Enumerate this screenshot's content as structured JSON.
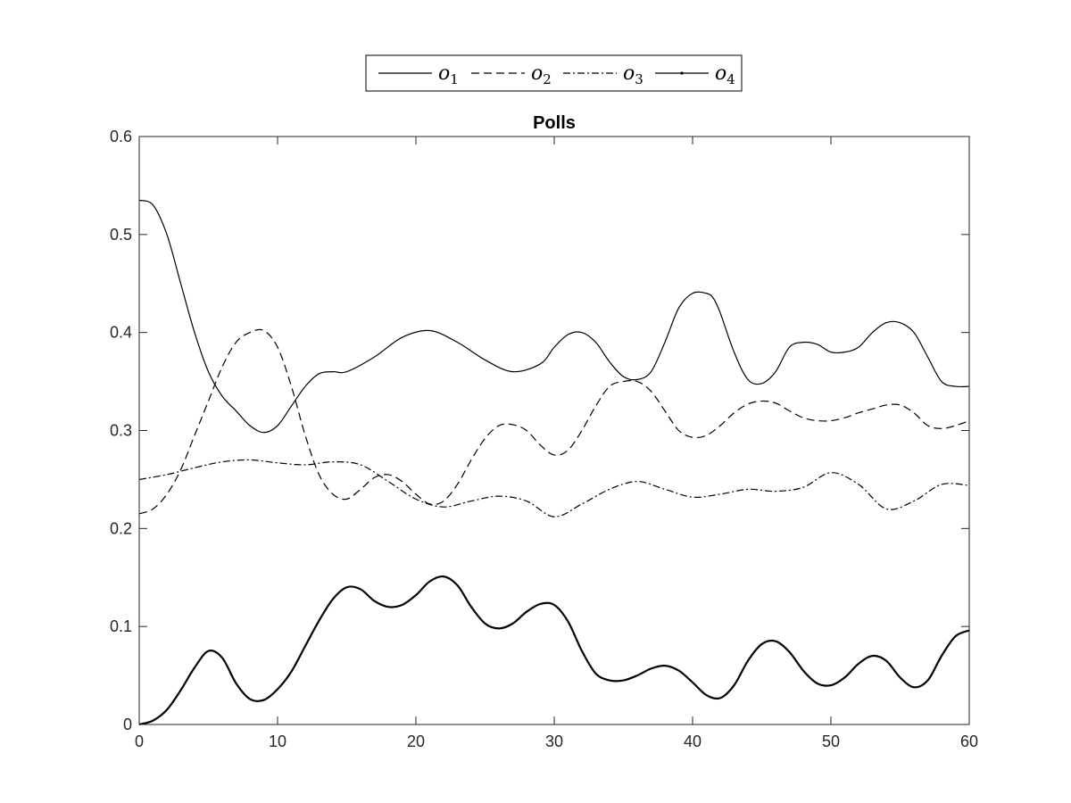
{
  "chart_data": {
    "type": "line",
    "title": "Polls",
    "xlabel": "",
    "ylabel": "",
    "xlim": [
      0,
      60
    ],
    "ylim": [
      0,
      0.6
    ],
    "xticks": [
      0,
      10,
      20,
      30,
      40,
      50,
      60
    ],
    "yticks": [
      0,
      0.1,
      0.2,
      0.3,
      0.4,
      0.5,
      0.6
    ],
    "xtick_labels": [
      "0",
      "10",
      "20",
      "30",
      "40",
      "50",
      "60"
    ],
    "ytick_labels": [
      "0",
      "0.1",
      "0.2",
      "0.3",
      "0.4",
      "0.5",
      "0.6"
    ],
    "grid": false,
    "legend_position": "top-center",
    "series": [
      {
        "name": "o1",
        "name_base": "o",
        "name_sub": "1",
        "style": "solid",
        "color": "#000000",
        "x": [
          0,
          1,
          2,
          3,
          4,
          5,
          6,
          7,
          8,
          9,
          10,
          11,
          12,
          13,
          14,
          15,
          17,
          19,
          21,
          23,
          25,
          27,
          29,
          30,
          31,
          32,
          33,
          34,
          35,
          36,
          37,
          38,
          39,
          40,
          41,
          41.5,
          42,
          43,
          44,
          45,
          46,
          47,
          48,
          49,
          50,
          51,
          52,
          53,
          54,
          55,
          56,
          57,
          58,
          59,
          60
        ],
        "values": [
          0.535,
          0.53,
          0.5,
          0.45,
          0.4,
          0.36,
          0.335,
          0.32,
          0.305,
          0.298,
          0.305,
          0.325,
          0.345,
          0.358,
          0.36,
          0.36,
          0.375,
          0.395,
          0.402,
          0.39,
          0.372,
          0.36,
          0.368,
          0.385,
          0.398,
          0.4,
          0.39,
          0.37,
          0.355,
          0.352,
          0.36,
          0.39,
          0.425,
          0.44,
          0.44,
          0.435,
          0.42,
          0.38,
          0.352,
          0.348,
          0.36,
          0.385,
          0.39,
          0.388,
          0.38,
          0.38,
          0.385,
          0.4,
          0.41,
          0.41,
          0.4,
          0.375,
          0.35,
          0.345,
          0.345
        ]
      },
      {
        "name": "o2",
        "name_base": "o",
        "name_sub": "2",
        "style": "dashed",
        "color": "#000000",
        "x": [
          0,
          1,
          2,
          3,
          4,
          5,
          6,
          7,
          8,
          9,
          10,
          11,
          12,
          13,
          14,
          15,
          16,
          17,
          18,
          19,
          20,
          21,
          22,
          23,
          24,
          25,
          26,
          27,
          28,
          29,
          30,
          31,
          32,
          33,
          34,
          35,
          36,
          37,
          38,
          39,
          40,
          41,
          42,
          43,
          44,
          45,
          46,
          47,
          48,
          49,
          50,
          51,
          52,
          53,
          54,
          55,
          56,
          57,
          58,
          59,
          60
        ],
        "values": [
          0.215,
          0.22,
          0.235,
          0.26,
          0.295,
          0.33,
          0.365,
          0.39,
          0.4,
          0.402,
          0.385,
          0.345,
          0.295,
          0.255,
          0.235,
          0.23,
          0.24,
          0.252,
          0.255,
          0.248,
          0.235,
          0.225,
          0.228,
          0.245,
          0.27,
          0.292,
          0.305,
          0.306,
          0.3,
          0.285,
          0.275,
          0.28,
          0.3,
          0.325,
          0.345,
          0.35,
          0.35,
          0.34,
          0.32,
          0.3,
          0.293,
          0.295,
          0.305,
          0.318,
          0.327,
          0.33,
          0.328,
          0.32,
          0.313,
          0.31,
          0.31,
          0.313,
          0.318,
          0.322,
          0.326,
          0.326,
          0.318,
          0.305,
          0.302,
          0.305,
          0.31
        ]
      },
      {
        "name": "o3",
        "name_base": "o",
        "name_sub": "3",
        "style": "dashdot",
        "color": "#000000",
        "x": [
          0,
          2,
          4,
          6,
          8,
          10,
          12,
          14,
          16,
          18,
          20,
          22,
          24,
          26,
          28,
          30,
          32,
          34,
          36,
          38,
          40,
          42,
          44,
          46,
          48,
          50,
          52,
          54,
          56,
          58,
          60
        ],
        "values": [
          0.25,
          0.255,
          0.262,
          0.268,
          0.27,
          0.267,
          0.265,
          0.268,
          0.265,
          0.248,
          0.23,
          0.222,
          0.228,
          0.233,
          0.228,
          0.212,
          0.225,
          0.24,
          0.248,
          0.24,
          0.232,
          0.235,
          0.24,
          0.238,
          0.242,
          0.257,
          0.245,
          0.22,
          0.228,
          0.245,
          0.244
        ]
      },
      {
        "name": "o4",
        "name_base": "o",
        "name_sub": "4",
        "style": "solid-dots",
        "color": "#000000",
        "x": [
          0,
          1,
          2,
          3,
          4,
          5,
          6,
          7,
          8,
          9,
          10,
          11,
          12,
          13,
          14,
          15,
          16,
          17,
          18,
          19,
          20,
          21,
          22,
          23,
          24,
          25,
          26,
          27,
          28,
          29,
          30,
          31,
          32,
          33,
          34,
          35,
          36,
          37,
          38,
          39,
          40,
          41,
          42,
          43,
          44,
          45,
          46,
          47,
          48,
          49,
          50,
          51,
          52,
          53,
          54,
          55,
          56,
          57,
          58,
          59,
          60
        ],
        "values": [
          0.0,
          0.004,
          0.015,
          0.035,
          0.058,
          0.075,
          0.068,
          0.042,
          0.026,
          0.025,
          0.036,
          0.054,
          0.08,
          0.106,
          0.128,
          0.14,
          0.138,
          0.126,
          0.12,
          0.122,
          0.132,
          0.146,
          0.151,
          0.142,
          0.12,
          0.103,
          0.098,
          0.103,
          0.115,
          0.123,
          0.122,
          0.105,
          0.075,
          0.052,
          0.045,
          0.045,
          0.05,
          0.057,
          0.06,
          0.055,
          0.043,
          0.03,
          0.027,
          0.04,
          0.065,
          0.082,
          0.085,
          0.074,
          0.055,
          0.042,
          0.04,
          0.048,
          0.062,
          0.07,
          0.065,
          0.048,
          0.038,
          0.045,
          0.07,
          0.09,
          0.096
        ]
      }
    ]
  }
}
